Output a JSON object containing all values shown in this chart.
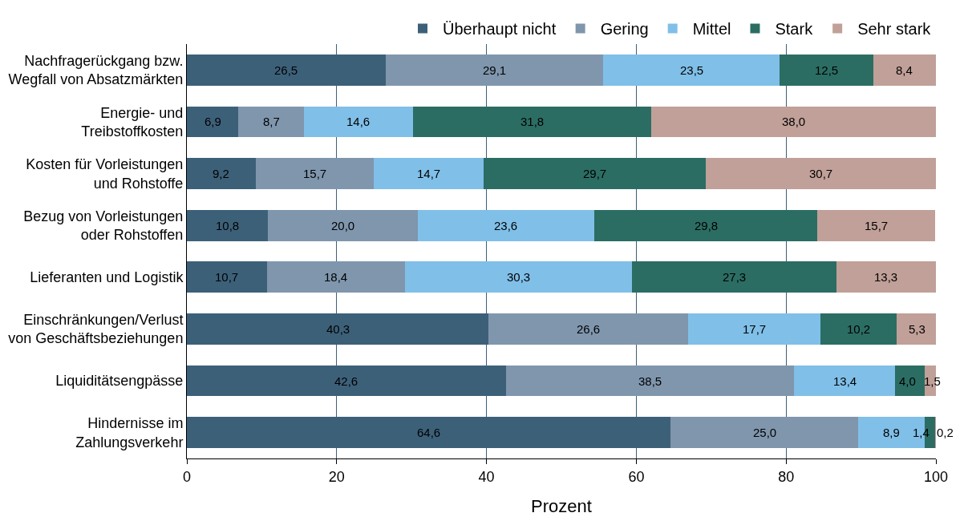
{
  "chart_data": {
    "type": "bar",
    "orientation": "horizontal",
    "stacked": true,
    "xlabel": "Prozent",
    "xlim": [
      0,
      100
    ],
    "xticks": [
      0,
      20,
      40,
      60,
      80,
      100
    ],
    "grid": "x",
    "legend": "top right",
    "categories": [
      "Nachfragerückgang bzw.\nWegfall von Absatzmärkten",
      "Energie- und\nTreibstoffkosten",
      "Kosten für Vorleistungen\nund Rohstoffe",
      "Bezug von Vorleistungen\noder Rohstoffen",
      "Lieferanten und Logistik",
      "Einschränkungen/Verlust\nvon Geschäftsbeziehungen",
      "Liquiditätsengpässe",
      "Hindernisse im\nZahlungsverkehr"
    ],
    "series": [
      {
        "name": "Überhaupt nicht",
        "color": "#3d6079",
        "values": [
          26.5,
          6.9,
          9.2,
          10.8,
          10.7,
          40.3,
          42.6,
          64.6
        ],
        "value_labels": [
          "26,5",
          "6,9",
          "9,2",
          "10,8",
          "10,7",
          "40,3",
          "42,6",
          "64,6"
        ]
      },
      {
        "name": "Gering",
        "color": "#7f96ad",
        "values": [
          29.1,
          8.7,
          15.7,
          20.0,
          18.4,
          26.6,
          38.5,
          25.0
        ],
        "value_labels": [
          "29,1",
          "8,7",
          "15,7",
          "20,0",
          "18,4",
          "26,6",
          "38,5",
          "25,0"
        ]
      },
      {
        "name": "Mittel",
        "color": "#80bfe8",
        "values": [
          23.5,
          14.6,
          14.7,
          23.6,
          30.3,
          17.7,
          13.4,
          8.9
        ],
        "value_labels": [
          "23,5",
          "14,6",
          "14,7",
          "23,6",
          "30,3",
          "17,7",
          "13,4",
          "8,9"
        ]
      },
      {
        "name": "Stark",
        "color": "#2b6d63",
        "values": [
          12.5,
          31.8,
          29.7,
          29.8,
          27.3,
          10.2,
          4.0,
          1.4
        ],
        "value_labels": [
          "12,5",
          "31,8",
          "29,7",
          "29,8",
          "27,3",
          "10,2",
          "4,0",
          "1,4"
        ]
      },
      {
        "name": "Sehr stark",
        "color": "#c0a098",
        "values": [
          8.4,
          38.0,
          30.7,
          15.7,
          13.3,
          5.3,
          1.5,
          0.2
        ],
        "value_labels": [
          "8,4",
          "38,0",
          "30,7",
          "15,7",
          "13,3",
          "5,3",
          "1,5",
          "0,2"
        ]
      }
    ]
  }
}
